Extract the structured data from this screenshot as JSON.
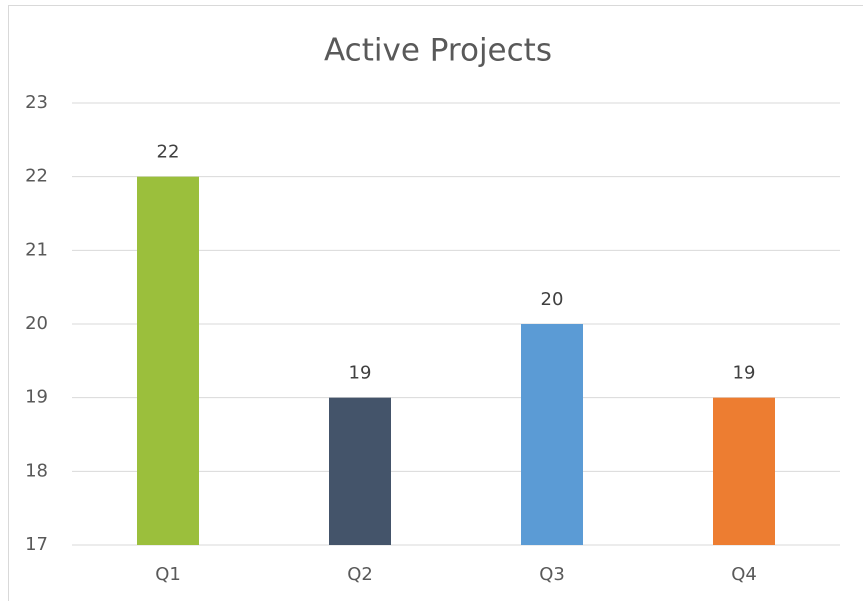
{
  "chart_data": {
    "type": "bar",
    "title": "Active Projects",
    "categories": [
      "Q1",
      "Q2",
      "Q3",
      "Q4"
    ],
    "values": [
      22,
      19,
      20,
      19
    ],
    "colors": [
      "#9bbf3c",
      "#44546a",
      "#5b9bd5",
      "#ed7d31"
    ],
    "ylim": [
      17,
      23
    ],
    "yticks": [
      17,
      18,
      19,
      20,
      21,
      22,
      23
    ],
    "grid": true
  }
}
